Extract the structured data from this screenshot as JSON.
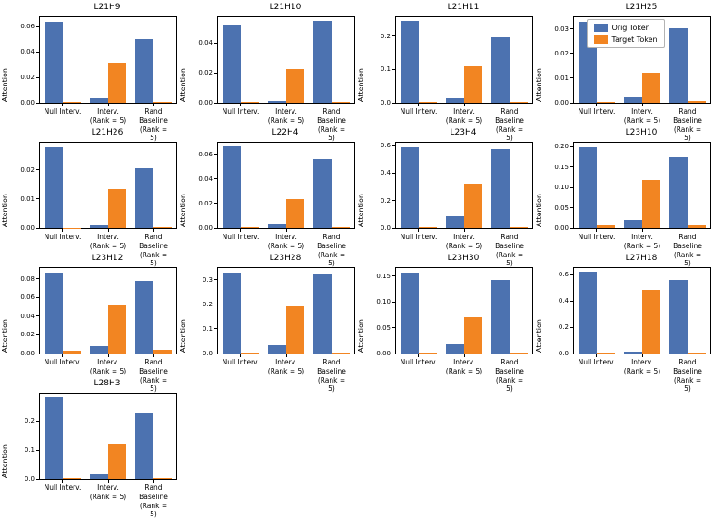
{
  "figure": {
    "description": "Grid of 13 bar-chart subplots comparing attention of original vs target token under interventions",
    "rows": 4,
    "cols": 4
  },
  "categories": [
    "Null Interv.",
    "Interv.\n(Rank = 5)",
    "Rand Baseline\n(Rank = 5)"
  ],
  "legend": {
    "orig_label": "Orig Token",
    "target_label": "Target Token",
    "location": "upper left of subplot L21H25"
  },
  "colors": {
    "orig": "#4c72b0",
    "target": "#f28522",
    "spine": "#000000",
    "legend_border": "#b3b3b3"
  },
  "chart_data": [
    {
      "type": "bar",
      "title": "L21H9",
      "ylabel": "Attention",
      "ylim": [
        0,
        0.0675
      ],
      "yticks": [
        "0.00",
        "0.02",
        "0.04",
        "0.06"
      ],
      "legend": false,
      "series": [
        {
          "name": "Orig Token",
          "values": [
            0.064,
            0.0035,
            0.0505
          ]
        },
        {
          "name": "Target Token",
          "values": [
            0.0008,
            0.0315,
            0.001
          ]
        }
      ]
    },
    {
      "type": "bar",
      "title": "L21H10",
      "ylabel": "Attention",
      "ylim": [
        0,
        0.0572
      ],
      "yticks": [
        "0.00",
        "0.02",
        "0.04"
      ],
      "legend": false,
      "series": [
        {
          "name": "Orig Token",
          "values": [
            0.0525,
            0.0015,
            0.0545
          ]
        },
        {
          "name": "Target Token",
          "values": [
            0.0005,
            0.0225,
            0.0005
          ]
        }
      ]
    },
    {
      "type": "bar",
      "title": "L21H11",
      "ylabel": "Attention",
      "ylim": [
        0,
        0.257
      ],
      "yticks": [
        "0.0",
        "0.1",
        "0.2"
      ],
      "legend": false,
      "series": [
        {
          "name": "Orig Token",
          "values": [
            0.245,
            0.015,
            0.196
          ]
        },
        {
          "name": "Target Token",
          "values": [
            0.003,
            0.11,
            0.003
          ]
        }
      ]
    },
    {
      "type": "bar",
      "title": "L21H25",
      "ylabel": "Attention",
      "ylim": [
        0,
        0.0347
      ],
      "yticks": [
        "0.00",
        "0.01",
        "0.02",
        "0.03"
      ],
      "legend": true,
      "series": [
        {
          "name": "Orig Token",
          "values": [
            0.033,
            0.0022,
            0.0303
          ]
        },
        {
          "name": "Target Token",
          "values": [
            0.0005,
            0.0122,
            0.0006
          ]
        }
      ]
    },
    {
      "type": "bar",
      "title": "L21H26",
      "ylabel": "Attention",
      "ylim": [
        0,
        0.0292
      ],
      "yticks": [
        "0.00",
        "0.01",
        "0.02"
      ],
      "legend": false,
      "series": [
        {
          "name": "Orig Token",
          "values": [
            0.0278,
            0.001,
            0.0205
          ]
        },
        {
          "name": "Target Token",
          "values": [
            0.0001,
            0.0135,
            0.0003
          ]
        }
      ]
    },
    {
      "type": "bar",
      "title": "L22H4",
      "ylabel": "Attention",
      "ylim": [
        0,
        0.0693
      ],
      "yticks": [
        "0.00",
        "0.02",
        "0.04",
        "0.06"
      ],
      "legend": false,
      "series": [
        {
          "name": "Orig Token",
          "values": [
            0.066,
            0.004,
            0.0562
          ]
        },
        {
          "name": "Target Token",
          "values": [
            0.001,
            0.0238,
            0.001
          ]
        }
      ]
    },
    {
      "type": "bar",
      "title": "L23H4",
      "ylabel": "Attention",
      "ylim": [
        0,
        0.62
      ],
      "yticks": [
        "0.0",
        "0.2",
        "0.4",
        "0.6"
      ],
      "legend": false,
      "series": [
        {
          "name": "Orig Token",
          "values": [
            0.59,
            0.085,
            0.572
          ]
        },
        {
          "name": "Target Token",
          "values": [
            0.008,
            0.322,
            0.008
          ]
        }
      ]
    },
    {
      "type": "bar",
      "title": "L23H10",
      "ylabel": "Attention",
      "ylim": [
        0,
        0.209
      ],
      "yticks": [
        "0.00",
        "0.05",
        "0.10",
        "0.15",
        "0.20"
      ],
      "legend": false,
      "series": [
        {
          "name": "Orig Token",
          "values": [
            0.199,
            0.021,
            0.173
          ]
        },
        {
          "name": "Target Token",
          "values": [
            0.006,
            0.117,
            0.008
          ]
        }
      ]
    },
    {
      "type": "bar",
      "title": "L23H12",
      "ylabel": "Attention",
      "ylim": [
        0,
        0.0914
      ],
      "yticks": [
        "0.00",
        "0.02",
        "0.04",
        "0.06",
        "0.08"
      ],
      "legend": false,
      "series": [
        {
          "name": "Orig Token",
          "values": [
            0.087,
            0.008,
            0.0775
          ]
        },
        {
          "name": "Target Token",
          "values": [
            0.003,
            0.052,
            0.004
          ]
        }
      ]
    },
    {
      "type": "bar",
      "title": "L23H28",
      "ylabel": "Attention",
      "ylim": [
        0,
        0.348
      ],
      "yticks": [
        "0.0",
        "0.1",
        "0.2",
        "0.3"
      ],
      "legend": false,
      "series": [
        {
          "name": "Orig Token",
          "values": [
            0.331,
            0.035,
            0.327
          ]
        },
        {
          "name": "Target Token",
          "values": [
            0.005,
            0.193,
            0.005
          ]
        }
      ]
    },
    {
      "type": "bar",
      "title": "L23H30",
      "ylabel": "Attention",
      "ylim": [
        0,
        0.165
      ],
      "yticks": [
        "0.00",
        "0.05",
        "0.10",
        "0.15"
      ],
      "legend": false,
      "series": [
        {
          "name": "Orig Token",
          "values": [
            0.157,
            0.019,
            0.142
          ]
        },
        {
          "name": "Target Token",
          "values": [
            0.002,
            0.071,
            0.002
          ]
        }
      ]
    },
    {
      "type": "bar",
      "title": "L27H18",
      "ylabel": "Attention",
      "ylim": [
        0,
        0.651
      ],
      "yticks": [
        "0.0",
        "0.2",
        "0.4",
        "0.6"
      ],
      "legend": false,
      "series": [
        {
          "name": "Orig Token",
          "values": [
            0.62,
            0.015,
            0.558
          ]
        },
        {
          "name": "Target Token",
          "values": [
            0.005,
            0.487,
            0.008
          ]
        }
      ]
    },
    {
      "type": "bar",
      "title": "L28H3",
      "ylabel": "Attention",
      "ylim": [
        0,
        0.295
      ],
      "yticks": [
        "0.0",
        "0.1",
        "0.2"
      ],
      "legend": false,
      "series": [
        {
          "name": "Orig Token",
          "values": [
            0.281,
            0.016,
            0.228
          ]
        },
        {
          "name": "Target Token",
          "values": [
            0.002,
            0.118,
            0.003
          ]
        }
      ]
    }
  ]
}
